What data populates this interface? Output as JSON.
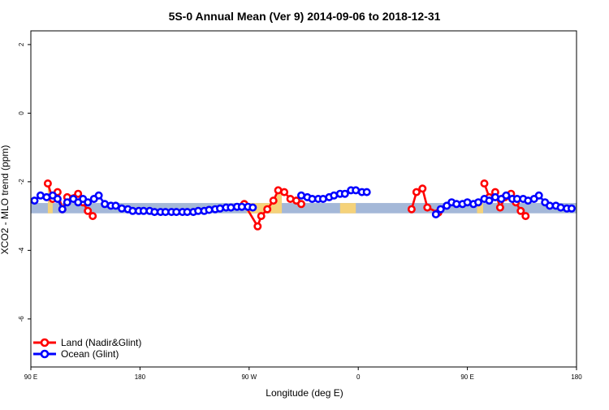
{
  "chart_data": {
    "type": "line",
    "title": "5S-0 Annual Mean (Ver 9)   2014-09-06 to 2018-12-31",
    "xlabel": "Longitude (deg E)",
    "ylabel": "XCO2 - MLO trend (ppm)",
    "xlim": [
      90,
      540
    ],
    "ylim": [
      -7.4,
      2.4
    ],
    "x_ticks": [
      {
        "value": 90,
        "label": "90 E"
      },
      {
        "value": 180,
        "label": "180"
      },
      {
        "value": 270,
        "label": "90 W"
      },
      {
        "value": 360,
        "label": "0"
      },
      {
        "value": 450,
        "label": "90 E"
      },
      {
        "value": 540,
        "label": "180"
      }
    ],
    "y_ticks": [
      {
        "value": 2,
        "label": "2"
      },
      {
        "value": 0,
        "label": "0"
      },
      {
        "value": -2,
        "label": "-2"
      },
      {
        "value": -4,
        "label": "-4"
      },
      {
        "value": -6,
        "label": "-6"
      }
    ],
    "band": {
      "lower": -2.92,
      "upper": -2.62,
      "color": "#a4b8d8",
      "land_color": "#f5d27a"
    },
    "land_fill_ranges": [
      [
        104,
        108
      ],
      [
        268,
        297
      ],
      [
        345,
        358
      ],
      [
        458,
        463
      ]
    ],
    "legend": {
      "position": "bottom-left",
      "entries": [
        {
          "label": "Land (Nadir&Glint)",
          "color": "#ff0000"
        },
        {
          "label": "Ocean (Glint)",
          "color": "#0000ff"
        }
      ]
    },
    "series": [
      {
        "name": "Land (Nadir&Glint)",
        "color": "#ff0000",
        "segments": [
          [
            [
              104,
              -2.05
            ],
            [
              108,
              -2.5
            ],
            [
              112,
              -2.3
            ],
            [
              116,
              -2.8
            ],
            [
              120,
              -2.45
            ],
            [
              129,
              -2.35
            ],
            [
              133,
              -2.6
            ],
            [
              137,
              -2.85
            ],
            [
              141,
              -3.0
            ]
          ],
          [
            [
              266,
              -2.65
            ],
            [
              277,
              -3.3
            ],
            [
              280,
              -3.0
            ],
            [
              285,
              -2.8
            ],
            [
              290,
              -2.55
            ],
            [
              294,
              -2.25
            ],
            [
              299,
              -2.3
            ],
            [
              304,
              -2.5
            ],
            [
              309,
              -2.55
            ],
            [
              313,
              -2.65
            ]
          ],
          [
            [
              404,
              -2.8
            ],
            [
              408,
              -2.3
            ],
            [
              413,
              -2.2
            ],
            [
              417,
              -2.75
            ],
            [
              426,
              -2.9
            ]
          ],
          [
            [
              464,
              -2.05
            ],
            [
              468,
              -2.45
            ],
            [
              473,
              -2.3
            ],
            [
              477,
              -2.75
            ],
            [
              481,
              -2.45
            ],
            [
              486,
              -2.35
            ],
            [
              490,
              -2.6
            ],
            [
              494,
              -2.85
            ],
            [
              498,
              -3.0
            ]
          ]
        ]
      },
      {
        "name": "Ocean (Glint)",
        "color": "#0000ff",
        "points": [
          [
            93,
            -2.55
          ],
          [
            98,
            -2.4
          ],
          [
            103,
            -2.45
          ],
          [
            108,
            -2.4
          ],
          [
            112,
            -2.5
          ],
          [
            116,
            -2.8
          ],
          [
            120,
            -2.6
          ],
          [
            125,
            -2.5
          ],
          [
            129,
            -2.6
          ],
          [
            133,
            -2.5
          ],
          [
            137,
            -2.6
          ],
          [
            142,
            -2.5
          ],
          [
            146,
            -2.4
          ],
          [
            151,
            -2.65
          ],
          [
            156,
            -2.7
          ],
          [
            160,
            -2.7
          ],
          [
            165,
            -2.78
          ],
          [
            170,
            -2.8
          ],
          [
            174,
            -2.85
          ],
          [
            179,
            -2.85
          ],
          [
            183,
            -2.85
          ],
          [
            188,
            -2.85
          ],
          [
            192,
            -2.88
          ],
          [
            197,
            -2.88
          ],
          [
            201,
            -2.88
          ],
          [
            206,
            -2.88
          ],
          [
            210,
            -2.88
          ],
          [
            215,
            -2.88
          ],
          [
            219,
            -2.88
          ],
          [
            224,
            -2.88
          ],
          [
            228,
            -2.85
          ],
          [
            233,
            -2.85
          ],
          [
            237,
            -2.82
          ],
          [
            242,
            -2.8
          ],
          [
            246,
            -2.78
          ],
          [
            251,
            -2.75
          ],
          [
            255,
            -2.75
          ],
          [
            260,
            -2.73
          ],
          [
            264,
            -2.73
          ],
          [
            269,
            -2.73
          ],
          [
            273,
            -2.75
          ],
          [
            313,
            -2.4
          ],
          [
            318,
            -2.45
          ],
          [
            322,
            -2.5
          ],
          [
            327,
            -2.5
          ],
          [
            331,
            -2.5
          ],
          [
            336,
            -2.45
          ],
          [
            340,
            -2.4
          ],
          [
            345,
            -2.35
          ],
          [
            349,
            -2.35
          ],
          [
            354,
            -2.25
          ],
          [
            358,
            -2.25
          ],
          [
            363,
            -2.3
          ],
          [
            367,
            -2.3
          ],
          [
            424,
            -2.95
          ],
          [
            428,
            -2.8
          ],
          [
            433,
            -2.7
          ],
          [
            437,
            -2.6
          ],
          [
            441,
            -2.65
          ],
          [
            446,
            -2.65
          ],
          [
            450,
            -2.6
          ],
          [
            455,
            -2.65
          ],
          [
            459,
            -2.6
          ],
          [
            464,
            -2.5
          ],
          [
            468,
            -2.55
          ],
          [
            473,
            -2.45
          ],
          [
            478,
            -2.5
          ],
          [
            482,
            -2.4
          ],
          [
            487,
            -2.5
          ],
          [
            491,
            -2.5
          ],
          [
            496,
            -2.5
          ],
          [
            500,
            -2.55
          ],
          [
            505,
            -2.5
          ],
          [
            509,
            -2.4
          ],
          [
            514,
            -2.6
          ],
          [
            518,
            -2.7
          ],
          [
            523,
            -2.7
          ],
          [
            527,
            -2.75
          ],
          [
            532,
            -2.78
          ],
          [
            536,
            -2.78
          ]
        ]
      }
    ]
  }
}
